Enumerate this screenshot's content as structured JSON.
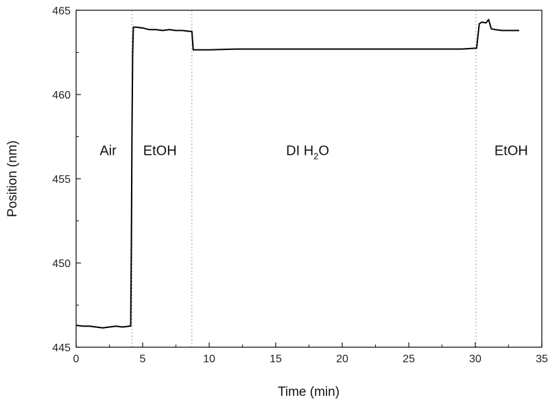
{
  "chart_data": {
    "type": "line",
    "xlabel": "Time (min)",
    "ylabel": "Position (nm)",
    "xlim": [
      0,
      35
    ],
    "ylim": [
      445,
      465
    ],
    "xticks": [
      0,
      5,
      10,
      15,
      20,
      25,
      30,
      35
    ],
    "yticks": [
      445,
      450,
      455,
      460,
      465
    ],
    "grid": false,
    "series": [
      {
        "x": [
          0,
          0.5,
          1,
          1.5,
          2,
          2.5,
          3,
          3.5,
          4,
          4.1,
          4.15,
          4.2,
          4.25,
          4.3,
          4.5,
          5,
          5.5,
          6,
          6.5,
          7,
          7.5,
          8,
          8.5,
          8.7,
          8.75,
          8.8,
          9,
          10,
          12,
          14,
          16,
          18,
          20,
          22,
          24,
          26,
          28,
          29,
          30,
          30.1,
          30.2,
          30.3,
          30.5,
          30.8,
          31,
          31.2,
          31.5,
          32,
          32.5,
          33,
          33.3
        ],
        "y": [
          446.3,
          446.25,
          446.25,
          446.2,
          446.15,
          446.2,
          446.25,
          446.2,
          446.25,
          446.25,
          451,
          458,
          462.5,
          464.0,
          464.0,
          463.95,
          463.85,
          463.85,
          463.8,
          463.85,
          463.8,
          463.8,
          463.75,
          463.75,
          463.2,
          462.65,
          462.65,
          462.65,
          462.7,
          462.7,
          462.7,
          462.7,
          462.7,
          462.7,
          462.7,
          462.7,
          462.7,
          462.7,
          462.75,
          462.75,
          463.5,
          464.2,
          464.3,
          464.25,
          464.45,
          463.9,
          463.85,
          463.8,
          463.8,
          463.8,
          463.8
        ]
      }
    ],
    "vlines": [
      4.2,
      8.7,
      30.05
    ],
    "annotations": [
      {
        "text": "Air",
        "x": 2.4,
        "y": 456.4
      },
      {
        "text": "EtOH",
        "x": 6.3,
        "y": 456.4
      },
      {
        "text": "DI H",
        "sub": "2",
        "tail": "O",
        "x": 17.4,
        "y": 456.4
      },
      {
        "text": "EtOH",
        "x": 32.7,
        "y": 456.4
      }
    ]
  }
}
